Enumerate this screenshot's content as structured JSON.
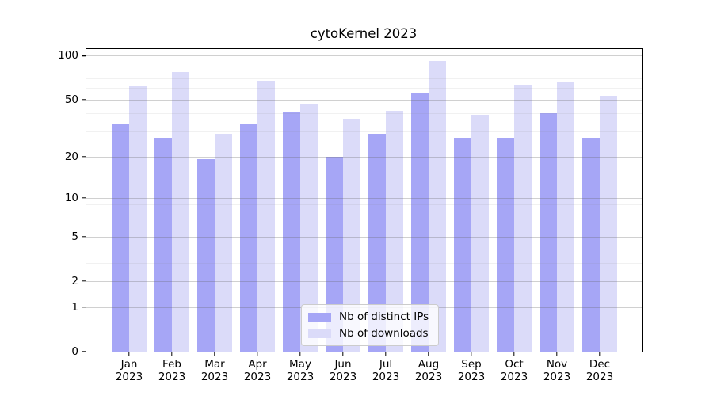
{
  "chart_data": {
    "type": "bar",
    "title": "cytoKernel 2023",
    "categories": [
      "Jan 2023",
      "Feb 2023",
      "Mar 2023",
      "Apr 2023",
      "May 2023",
      "Jun 2023",
      "Jul 2023",
      "Aug 2023",
      "Sep 2023",
      "Oct 2023",
      "Nov 2023",
      "Dec 2023"
    ],
    "series": [
      {
        "name": "Nb of distinct IPs",
        "color": "#a6a6f6",
        "values": [
          34,
          27,
          19,
          34,
          41,
          20,
          29,
          56,
          27,
          27,
          40,
          27
        ]
      },
      {
        "name": "Nb of downloads",
        "color": "#dbdbf9",
        "values": [
          62,
          77,
          29,
          67,
          47,
          37,
          42,
          92,
          39,
          63,
          66,
          53
        ]
      }
    ],
    "xlabel": "",
    "ylabel": "",
    "yscale": "log1p",
    "yticks": [
      0,
      1,
      2,
      5,
      10,
      20,
      50,
      100
    ],
    "y_minor_ticks": [
      3,
      4,
      6,
      7,
      8,
      9,
      30,
      40,
      60,
      70,
      80,
      90
    ],
    "ylim": [
      0,
      111
    ],
    "xlim": [
      -1,
      12
    ],
    "bar_width": 0.4,
    "grid": true,
    "legend_position": "lower center",
    "axis_color": "#000000",
    "background_color": "#ffffff"
  },
  "legend": {
    "entries": [
      {
        "label": "Nb of distinct IPs"
      },
      {
        "label": "Nb of downloads"
      }
    ]
  }
}
